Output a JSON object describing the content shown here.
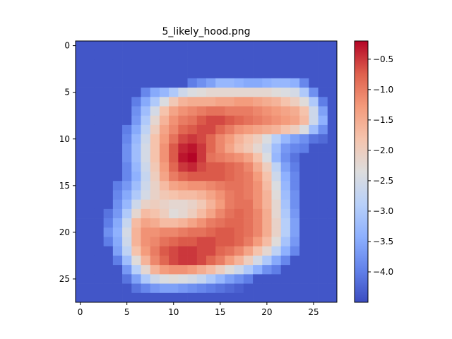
{
  "chart_data": {
    "type": "heatmap",
    "title": "5_likely_hood.png",
    "xlabel": "",
    "ylabel": "",
    "grid": false,
    "colormap": "coolwarm",
    "rows": 28,
    "cols": 28,
    "xlim": [
      -0.5,
      27.5
    ],
    "ylim": [
      27.5,
      -0.5
    ],
    "x_ticks": [
      0,
      5,
      10,
      15,
      20,
      25
    ],
    "y_ticks": [
      0,
      5,
      10,
      15,
      20,
      25
    ],
    "colorbar": {
      "min": -4.5,
      "max": -0.2,
      "ticks": [
        -0.5,
        -1.0,
        -1.5,
        -2.0,
        -2.5,
        -3.0,
        -3.5,
        -4.0
      ],
      "tick_labels": [
        "−0.5",
        "−1.0",
        "−1.5",
        "−2.0",
        "−2.5",
        "−3.0",
        "−3.5",
        "−4.0"
      ]
    },
    "values": [
      [
        -4.4,
        -4.4,
        -4.4,
        -4.4,
        -4.4,
        -4.4,
        -4.4,
        -4.4,
        -4.4,
        -4.4,
        -4.4,
        -4.4,
        -4.4,
        -4.4,
        -4.4,
        -4.4,
        -4.4,
        -4.4,
        -4.4,
        -4.4,
        -4.4,
        -4.4,
        -4.4,
        -4.4,
        -4.4,
        -4.4,
        -4.4,
        -4.4
      ],
      [
        -4.4,
        -4.4,
        -4.4,
        -4.4,
        -4.4,
        -4.4,
        -4.4,
        -4.4,
        -4.4,
        -4.4,
        -4.4,
        -4.4,
        -4.4,
        -4.4,
        -4.4,
        -4.4,
        -4.4,
        -4.4,
        -4.4,
        -4.4,
        -4.4,
        -4.4,
        -4.4,
        -4.4,
        -4.4,
        -4.4,
        -4.4,
        -4.4
      ],
      [
        -4.4,
        -4.4,
        -4.4,
        -4.4,
        -4.4,
        -4.4,
        -4.4,
        -4.4,
        -4.4,
        -4.4,
        -4.4,
        -4.4,
        -4.4,
        -4.4,
        -4.4,
        -4.4,
        -4.4,
        -4.4,
        -4.4,
        -4.4,
        -4.4,
        -4.4,
        -4.4,
        -4.4,
        -4.4,
        -4.4,
        -4.4,
        -4.4
      ],
      [
        -4.4,
        -4.4,
        -4.4,
        -4.4,
        -4.4,
        -4.4,
        -4.4,
        -4.4,
        -4.4,
        -4.4,
        -4.4,
        -4.4,
        -4.4,
        -4.4,
        -4.4,
        -4.4,
        -4.4,
        -4.4,
        -4.4,
        -4.4,
        -4.4,
        -4.4,
        -4.4,
        -4.4,
        -4.4,
        -4.4,
        -4.4,
        -4.4
      ],
      [
        -4.4,
        -4.4,
        -4.4,
        -4.4,
        -4.4,
        -4.4,
        -4.4,
        -4.4,
        -4.4,
        -4.4,
        -4.4,
        -4.4,
        -4.0,
        -3.8,
        -3.6,
        -3.3,
        -3.3,
        -3.4,
        -3.5,
        -3.5,
        -3.4,
        -3.3,
        -3.3,
        -3.4,
        -3.9,
        -4.4,
        -4.4,
        -4.4
      ],
      [
        -4.4,
        -4.4,
        -4.4,
        -4.4,
        -4.4,
        -4.4,
        -4.4,
        -3.9,
        -3.5,
        -3.3,
        -3.0,
        -2.6,
        -2.4,
        -2.3,
        -2.2,
        -2.2,
        -2.2,
        -2.2,
        -2.2,
        -2.2,
        -2.2,
        -2.3,
        -2.4,
        -2.5,
        -3.0,
        -3.8,
        -4.4,
        -4.4
      ],
      [
        -4.4,
        -4.4,
        -4.4,
        -4.4,
        -4.4,
        -4.4,
        -4.0,
        -3.5,
        -3.0,
        -2.4,
        -1.9,
        -1.6,
        -1.5,
        -1.5,
        -1.5,
        -1.4,
        -1.4,
        -1.3,
        -1.3,
        -1.4,
        -1.5,
        -1.6,
        -1.8,
        -2.0,
        -2.3,
        -3.0,
        -4.0,
        -4.4
      ],
      [
        -4.4,
        -4.4,
        -4.4,
        -4.4,
        -4.4,
        -4.4,
        -3.8,
        -3.2,
        -2.5,
        -1.8,
        -1.4,
        -1.2,
        -1.1,
        -1.0,
        -0.9,
        -0.9,
        -1.0,
        -1.0,
        -1.0,
        -1.1,
        -1.2,
        -1.3,
        -1.4,
        -1.5,
        -1.8,
        -2.6,
        -3.6,
        -4.4
      ],
      [
        -4.4,
        -4.4,
        -4.4,
        -4.4,
        -4.4,
        -4.4,
        -3.7,
        -3.0,
        -2.2,
        -1.6,
        -1.2,
        -1.0,
        -0.9,
        -0.7,
        -0.6,
        -0.6,
        -0.7,
        -0.8,
        -0.9,
        -1.0,
        -1.1,
        -1.2,
        -1.3,
        -1.4,
        -1.7,
        -2.6,
        -3.4,
        -4.4
      ],
      [
        -4.4,
        -4.4,
        -4.4,
        -4.4,
        -4.4,
        -4.0,
        -3.5,
        -2.8,
        -2.0,
        -1.4,
        -1.1,
        -0.8,
        -0.7,
        -0.6,
        -0.6,
        -0.8,
        -1.0,
        -1.2,
        -1.3,
        -1.4,
        -1.5,
        -1.6,
        -1.8,
        -2.0,
        -2.4,
        -3.2,
        -3.8,
        -4.4
      ],
      [
        -4.4,
        -4.4,
        -4.4,
        -4.4,
        -4.4,
        -3.9,
        -3.3,
        -2.6,
        -1.8,
        -1.3,
        -0.9,
        -0.6,
        -0.5,
        -0.6,
        -0.8,
        -1.1,
        -1.3,
        -1.6,
        -1.8,
        -2.0,
        -2.4,
        -2.9,
        -3.3,
        -3.6,
        -3.8,
        -4.1,
        -4.2,
        -4.4
      ],
      [
        -4.4,
        -4.4,
        -4.4,
        -4.4,
        -4.4,
        -3.8,
        -3.2,
        -2.5,
        -1.8,
        -1.2,
        -0.7,
        -0.4,
        -0.3,
        -0.5,
        -0.8,
        -1.1,
        -1.4,
        -1.7,
        -1.9,
        -2.2,
        -2.6,
        -3.2,
        -3.7,
        -3.9,
        -4.0,
        -4.4,
        -4.4,
        -4.4
      ],
      [
        -4.4,
        -4.4,
        -4.4,
        -4.4,
        -4.4,
        -3.8,
        -3.2,
        -2.5,
        -1.8,
        -1.2,
        -0.7,
        -0.3,
        -0.2,
        -0.5,
        -0.9,
        -1.0,
        -1.1,
        -1.2,
        -1.4,
        -1.8,
        -2.4,
        -3.3,
        -3.8,
        -4.1,
        -4.4,
        -4.4,
        -4.4,
        -4.4
      ],
      [
        -4.4,
        -4.4,
        -4.4,
        -4.4,
        -4.4,
        -3.9,
        -3.3,
        -2.6,
        -1.9,
        -1.3,
        -0.8,
        -0.5,
        -0.4,
        -0.6,
        -0.7,
        -0.7,
        -0.8,
        -0.9,
        -1.1,
        -1.5,
        -2.0,
        -2.8,
        -3.6,
        -4.0,
        -4.4,
        -4.4,
        -4.4,
        -4.4
      ],
      [
        -4.4,
        -4.4,
        -4.4,
        -4.4,
        -4.4,
        -3.9,
        -3.4,
        -2.7,
        -2.0,
        -1.4,
        -1.0,
        -0.8,
        -0.7,
        -0.7,
        -0.7,
        -0.7,
        -0.8,
        -0.9,
        -1.0,
        -1.3,
        -1.8,
        -2.6,
        -3.4,
        -3.9,
        -4.4,
        -4.4,
        -4.4,
        -4.4
      ],
      [
        -4.4,
        -4.4,
        -4.4,
        -4.4,
        -4.0,
        -3.7,
        -3.2,
        -2.6,
        -2.1,
        -1.7,
        -1.4,
        -1.3,
        -1.2,
        -1.2,
        -1.1,
        -1.0,
        -0.9,
        -0.9,
        -1.0,
        -1.2,
        -1.7,
        -2.4,
        -3.3,
        -3.9,
        -4.4,
        -4.4,
        -4.4,
        -4.4
      ],
      [
        -4.4,
        -4.4,
        -4.4,
        -4.4,
        -3.9,
        -3.5,
        -3.0,
        -2.5,
        -2.1,
        -1.9,
        -1.8,
        -1.7,
        -1.7,
        -1.6,
        -1.4,
        -1.2,
        -1.0,
        -0.9,
        -1.0,
        -1.2,
        -1.6,
        -2.3,
        -3.2,
        -3.8,
        -4.4,
        -4.4,
        -4.4,
        -4.4
      ],
      [
        -4.4,
        -4.4,
        -4.4,
        -4.4,
        -3.8,
        -3.3,
        -2.6,
        -2.1,
        -2.0,
        -2.1,
        -2.2,
        -2.2,
        -2.1,
        -1.9,
        -1.6,
        -1.3,
        -1.0,
        -0.9,
        -0.9,
        -1.2,
        -1.6,
        -2.2,
        -3.1,
        -3.8,
        -4.4,
        -4.4,
        -4.4,
        -4.4
      ],
      [
        -4.4,
        -4.4,
        -4.4,
        -4.1,
        -3.7,
        -3.0,
        -2.2,
        -1.7,
        -1.8,
        -2.0,
        -2.3,
        -2.2,
        -2.0,
        -1.7,
        -1.4,
        -1.1,
        -0.9,
        -0.8,
        -0.9,
        -1.1,
        -1.5,
        -2.2,
        -3.0,
        -3.7,
        -4.4,
        -4.4,
        -4.4,
        -4.4
      ],
      [
        -4.4,
        -4.4,
        -4.4,
        -4.0,
        -3.5,
        -2.7,
        -1.7,
        -1.4,
        -1.5,
        -1.7,
        -1.7,
        -1.6,
        -1.4,
        -1.2,
        -1.0,
        -0.9,
        -0.8,
        -0.8,
        -0.9,
        -1.1,
        -1.5,
        -2.1,
        -2.9,
        -3.6,
        -4.4,
        -4.4,
        -4.4,
        -4.4
      ],
      [
        -4.4,
        -4.4,
        -4.4,
        -3.8,
        -3.4,
        -2.5,
        -1.6,
        -1.2,
        -1.2,
        -1.1,
        -1.1,
        -1.0,
        -0.9,
        -0.9,
        -0.8,
        -0.7,
        -0.7,
        -0.8,
        -0.9,
        -1.1,
        -1.5,
        -2.1,
        -2.9,
        -3.6,
        -4.4,
        -4.4,
        -4.4,
        -4.4
      ],
      [
        -4.4,
        -4.4,
        -4.4,
        -4.0,
        -3.5,
        -2.6,
        -1.6,
        -1.2,
        -1.1,
        -0.9,
        -0.8,
        -0.7,
        -0.7,
        -0.6,
        -0.6,
        -0.7,
        -0.7,
        -0.8,
        -1.0,
        -1.3,
        -1.7,
        -2.3,
        -3.1,
        -3.7,
        -4.4,
        -4.4,
        -4.4,
        -4.4
      ],
      [
        -4.4,
        -4.4,
        -4.4,
        -4.4,
        -3.6,
        -2.8,
        -1.8,
        -1.3,
        -1.0,
        -0.7,
        -0.6,
        -0.5,
        -0.5,
        -0.6,
        -0.6,
        -0.8,
        -0.9,
        -1.1,
        -1.4,
        -1.8,
        -2.2,
        -2.8,
        -3.4,
        -3.9,
        -4.4,
        -4.4,
        -4.4,
        -4.4
      ],
      [
        -4.4,
        -4.4,
        -4.4,
        -4.4,
        -4.0,
        -3.2,
        -2.3,
        -1.6,
        -1.1,
        -0.8,
        -0.6,
        -0.5,
        -0.5,
        -0.6,
        -0.8,
        -1.0,
        -1.3,
        -1.6,
        -2.0,
        -2.5,
        -3.0,
        -3.5,
        -3.9,
        -4.4,
        -4.4,
        -4.4,
        -4.4,
        -4.4
      ],
      [
        -4.4,
        -4.4,
        -4.4,
        -4.4,
        -4.4,
        -3.7,
        -2.9,
        -2.2,
        -1.6,
        -1.3,
        -1.2,
        -1.2,
        -1.3,
        -1.5,
        -1.7,
        -2.0,
        -2.3,
        -2.6,
        -3.0,
        -3.4,
        -3.8,
        -4.0,
        -4.4,
        -4.4,
        -4.4,
        -4.4,
        -4.4,
        -4.4
      ],
      [
        -4.4,
        -4.4,
        -4.4,
        -4.4,
        -4.4,
        -4.1,
        -3.6,
        -3.0,
        -2.6,
        -2.4,
        -2.3,
        -2.4,
        -2.5,
        -2.7,
        -3.0,
        -3.3,
        -3.6,
        -3.8,
        -4.0,
        -4.4,
        -4.4,
        -4.4,
        -4.4,
        -4.4,
        -4.4,
        -4.4,
        -4.4,
        -4.4
      ],
      [
        -4.4,
        -4.4,
        -4.4,
        -4.4,
        -4.4,
        -4.4,
        -4.1,
        -3.9,
        -3.7,
        -3.6,
        -3.6,
        -3.7,
        -3.8,
        -3.9,
        -4.0,
        -4.1,
        -4.2,
        -4.3,
        -4.4,
        -4.4,
        -4.4,
        -4.4,
        -4.4,
        -4.4,
        -4.4,
        -4.4,
        -4.4,
        -4.4
      ],
      [
        -4.4,
        -4.4,
        -4.4,
        -4.4,
        -4.4,
        -4.4,
        -4.4,
        -4.4,
        -4.4,
        -4.4,
        -4.4,
        -4.4,
        -4.4,
        -4.4,
        -4.4,
        -4.4,
        -4.4,
        -4.4,
        -4.4,
        -4.4,
        -4.4,
        -4.4,
        -4.4,
        -4.4,
        -4.4,
        -4.4,
        -4.4,
        -4.4
      ]
    ]
  }
}
